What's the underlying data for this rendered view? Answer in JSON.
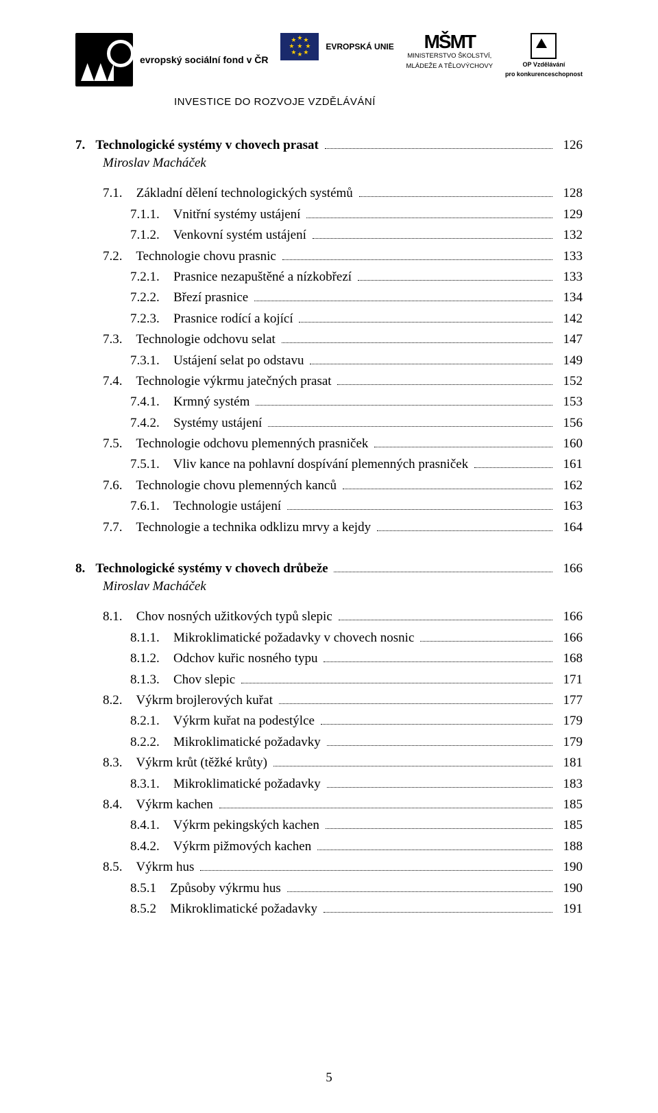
{
  "header": {
    "esf_lines": "evropský\nsociální\nfond v ČR",
    "eu_label": "EVROPSKÁ UNIE",
    "ministry_logo": "MŠMT",
    "ministry_line1": "MINISTERSTVO ŠKOLSTVÍ,",
    "ministry_line2": "MLÁDEŽE A TĚLOVÝCHOVY",
    "op_line1": "OP Vzdělávání",
    "op_line2": "pro konkurenceschopnost",
    "invest": "INVESTICE DO ROZVOJE VZDĚLÁVÁNÍ"
  },
  "sections": [
    {
      "head_num": "7.",
      "head_title": "Technologické systémy v chovech prasat",
      "head_page": "126",
      "author": "Miroslav Macháček",
      "lines": [
        {
          "indent": 1,
          "num": "7.1.",
          "title": "Základní dělení technologických systémů",
          "page": "128"
        },
        {
          "indent": 2,
          "num": "7.1.1.",
          "title": "Vnitřní systémy ustájení",
          "page": "129"
        },
        {
          "indent": 2,
          "num": "7.1.2.",
          "title": "Venkovní systém ustájení",
          "page": "132"
        },
        {
          "indent": 1,
          "num": "7.2.",
          "title": "Technologie chovu prasnic",
          "page": "133"
        },
        {
          "indent": 2,
          "num": "7.2.1.",
          "title": "Prasnice nezapuštěné a nízkobřezí",
          "page": "133"
        },
        {
          "indent": 2,
          "num": "7.2.2.",
          "title": "Březí prasnice",
          "page": "134"
        },
        {
          "indent": 2,
          "num": "7.2.3.",
          "title": "Prasnice rodící a kojící",
          "page": "142"
        },
        {
          "indent": 1,
          "num": "7.3.",
          "title": "Technologie odchovu selat",
          "page": "147"
        },
        {
          "indent": 2,
          "num": "7.3.1.",
          "title": "Ustájení selat po odstavu",
          "page": "149"
        },
        {
          "indent": 1,
          "num": "7.4.",
          "title": "Technologie výkrmu jatečných prasat",
          "page": "152"
        },
        {
          "indent": 2,
          "num": "7.4.1.",
          "title": "Krmný systém",
          "page": "153"
        },
        {
          "indent": 2,
          "num": "7.4.2.",
          "title": "Systémy ustájení",
          "page": "156"
        },
        {
          "indent": 1,
          "num": "7.5.",
          "title": "Technologie odchovu plemenných prasniček",
          "page": "160"
        },
        {
          "indent": 2,
          "num": "7.5.1.",
          "title": "Vliv kance na pohlavní dospívání plemenných prasniček",
          "page": "161"
        },
        {
          "indent": 1,
          "num": "7.6.",
          "title": "Technologie chovu plemenných kanců",
          "page": "162"
        },
        {
          "indent": 2,
          "num": "7.6.1.",
          "title": "Technologie ustájení",
          "page": "163"
        },
        {
          "indent": 1,
          "num": "7.7.",
          "title": "Technologie a technika odklizu mrvy a kejdy",
          "page": "164"
        }
      ]
    },
    {
      "head_num": "8.",
      "head_title": "Technologické systémy v chovech drůbeže",
      "head_page": "166",
      "author": "Miroslav Macháček",
      "lines": [
        {
          "indent": 1,
          "num": "8.1.",
          "title": "Chov nosných užitkových typů slepic",
          "page": "166"
        },
        {
          "indent": 2,
          "num": "8.1.1.",
          "title": "Mikroklimatické požadavky v chovech nosnic",
          "page": "166"
        },
        {
          "indent": 2,
          "num": "8.1.2.",
          "title": "Odchov kuřic nosného typu",
          "page": "168"
        },
        {
          "indent": 2,
          "num": "8.1.3.",
          "title": "Chov slepic",
          "page": "171"
        },
        {
          "indent": 1,
          "num": "8.2.",
          "title": "Výkrm brojlerových kuřat",
          "page": "177"
        },
        {
          "indent": 2,
          "num": "8.2.1.",
          "title": "Výkrm kuřat na podestýlce",
          "page": "179"
        },
        {
          "indent": 2,
          "num": "8.2.2.",
          "title": "Mikroklimatické požadavky",
          "page": "179"
        },
        {
          "indent": 1,
          "num": "8.3.",
          "title": "Výkrm krůt (těžké krůty)",
          "page": "181"
        },
        {
          "indent": 2,
          "num": "8.3.1.",
          "title": "Mikroklimatické požadavky",
          "page": "183"
        },
        {
          "indent": 1,
          "num": "8.4.",
          "title": "Výkrm kachen",
          "page": "185"
        },
        {
          "indent": 2,
          "num": "8.4.1.",
          "title": "Výkrm pekingských kachen",
          "page": "185"
        },
        {
          "indent": 2,
          "num": "8.4.2.",
          "title": "Výkrm pižmových kachen",
          "page": "188"
        },
        {
          "indent": 1,
          "num": "8.5.",
          "title": "Výkrm hus",
          "page": "190"
        },
        {
          "indent": 2,
          "num": "8.5.1",
          "title": "Způsoby výkrmu hus",
          "page": "190"
        },
        {
          "indent": 2,
          "num": "8.5.2",
          "title": "Mikroklimatické požadavky",
          "page": "191"
        }
      ]
    }
  ],
  "page_number": "5"
}
